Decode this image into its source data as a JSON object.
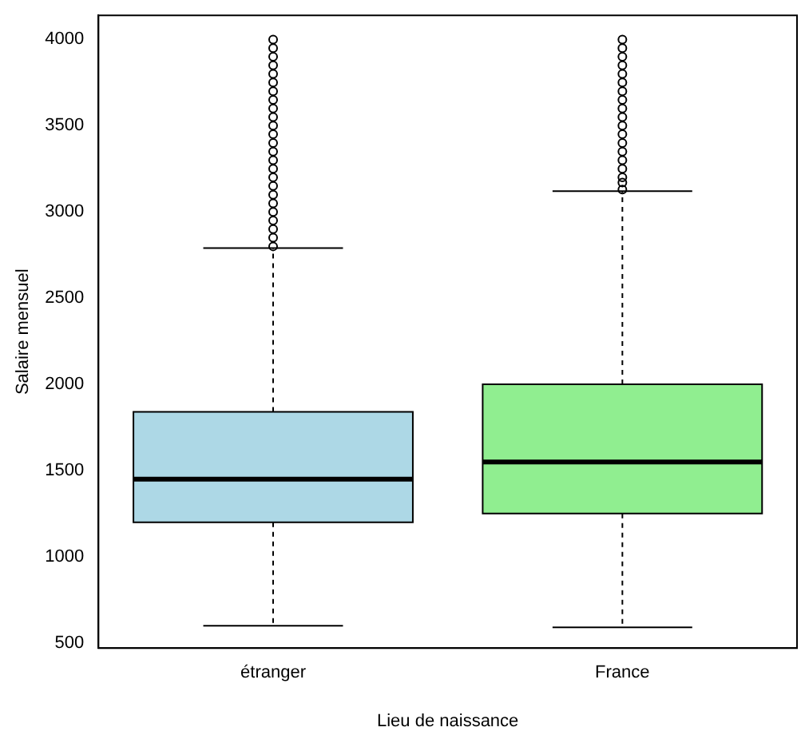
{
  "chart_data": {
    "type": "box",
    "xlabel": "Lieu de naissance",
    "ylabel": "Salaire mensuel",
    "categories": [
      "étranger",
      "France"
    ],
    "colors": [
      "#add8e6",
      "#90ee90"
    ],
    "boxes": [
      {
        "low": 600,
        "q1": 1200,
        "median": 1450,
        "q3": 1840,
        "high": 2790,
        "outliers": [
          2800,
          2850,
          2900,
          2950,
          3000,
          3050,
          3100,
          3150,
          3200,
          3250,
          3300,
          3350,
          3400,
          3450,
          3500,
          3550,
          3600,
          3650,
          3700,
          3750,
          3800,
          3850,
          3900,
          3950,
          4000
        ]
      },
      {
        "low": 590,
        "q1": 1250,
        "median": 1550,
        "q3": 2000,
        "high": 3120,
        "outliers": [
          3130,
          3170,
          3200,
          3250,
          3300,
          3350,
          3400,
          3450,
          3500,
          3550,
          3600,
          3650,
          3700,
          3750,
          3800,
          3850,
          3900,
          3950,
          4000
        ]
      }
    ],
    "ylim": [
      470,
      4140
    ],
    "yticks": [
      500,
      1000,
      1500,
      2000,
      2500,
      3000,
      3500,
      4000
    ],
    "grid": false
  }
}
